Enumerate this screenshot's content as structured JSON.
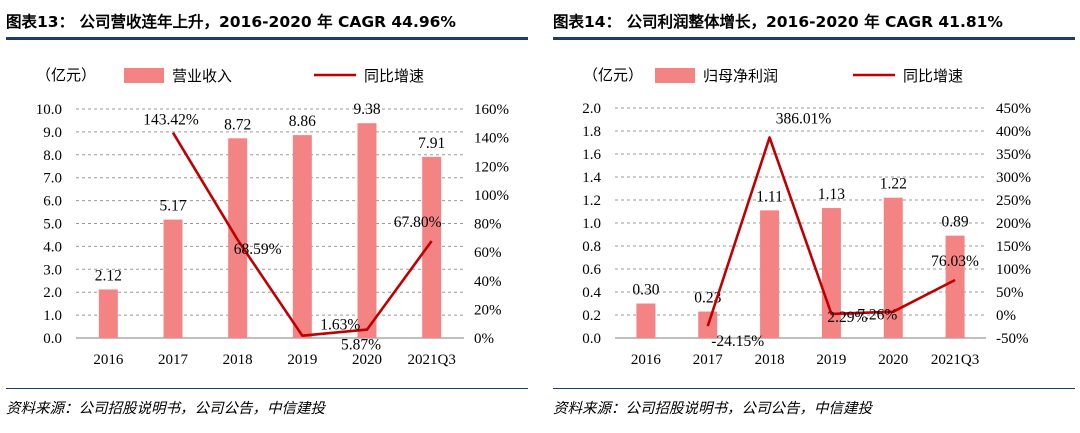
{
  "colors": {
    "bar": "#f48484",
    "line": "#c00000",
    "rule": "#1f3a6e",
    "grid": "#9a9a9a"
  },
  "charts": [
    {
      "title": "图表13：  公司营收连年上升，2016-2020 年 CAGR 44.96%",
      "source": "资料来源：公司招股说明书，公司公告，中信建投",
      "unit": "（亿元）"
    },
    {
      "title": "图表14：  公司利润整体增长，2016-2020 年 CAGR 41.81%",
      "source": "资料来源：公司招股说明书，公司公告，中信建投",
      "unit": "（亿元）"
    }
  ],
  "chart_data": [
    {
      "type": "bar",
      "categories": [
        "2016",
        "2017",
        "2018",
        "2019",
        "2020",
        "2021Q3"
      ],
      "series": [
        {
          "name": "营业收入",
          "type": "bar",
          "axis": "left",
          "values": [
            2.12,
            5.17,
            8.72,
            8.86,
            9.38,
            7.91
          ],
          "labels": [
            "2.12",
            "5.17",
            "8.72",
            "8.86",
            "9.38",
            "7.91"
          ]
        },
        {
          "name": "同比增速",
          "type": "line",
          "axis": "right",
          "values": [
            null,
            143.42,
            68.59,
            1.63,
            5.87,
            67.8
          ],
          "labels": [
            "",
            "143.42%",
            "68.59%",
            "1.63%",
            "5.87%",
            "67.80%"
          ]
        }
      ],
      "ylim": [
        0,
        10
      ],
      "yticks": [
        "0.0",
        "1.0",
        "2.0",
        "3.0",
        "4.0",
        "5.0",
        "6.0",
        "7.0",
        "8.0",
        "9.0",
        "10.0"
      ],
      "y2lim": [
        0,
        160
      ],
      "y2ticks": [
        "0%",
        "20%",
        "40%",
        "60%",
        "80%",
        "100%",
        "120%",
        "140%",
        "160%"
      ],
      "grid": true,
      "legend": "top"
    },
    {
      "type": "bar",
      "categories": [
        "2016",
        "2017",
        "2018",
        "2019",
        "2020",
        "2021Q3"
      ],
      "series": [
        {
          "name": "归母净利润",
          "type": "bar",
          "axis": "left",
          "values": [
            0.3,
            0.23,
            1.11,
            1.13,
            1.22,
            0.89
          ],
          "labels": [
            "0.30",
            "0.23",
            "1.11",
            "1.13",
            "1.22",
            "0.89"
          ]
        },
        {
          "name": "同比增速",
          "type": "line",
          "axis": "right",
          "values": [
            null,
            -24.15,
            386.01,
            2.29,
            7.26,
            76.03
          ],
          "labels": [
            "",
            "-24.15%",
            "386.01%",
            "2.29%",
            "7.26%",
            "76.03%"
          ]
        }
      ],
      "ylim": [
        0,
        2
      ],
      "yticks": [
        "0.0",
        "0.2",
        "0.4",
        "0.6",
        "0.8",
        "1.0",
        "1.2",
        "1.4",
        "1.6",
        "1.8",
        "2.0"
      ],
      "y2lim": [
        -50,
        450
      ],
      "y2ticks": [
        "-50%",
        "0%",
        "50%",
        "100%",
        "150%",
        "200%",
        "250%",
        "300%",
        "350%",
        "400%",
        "450%"
      ],
      "grid": true,
      "legend": "top"
    }
  ]
}
